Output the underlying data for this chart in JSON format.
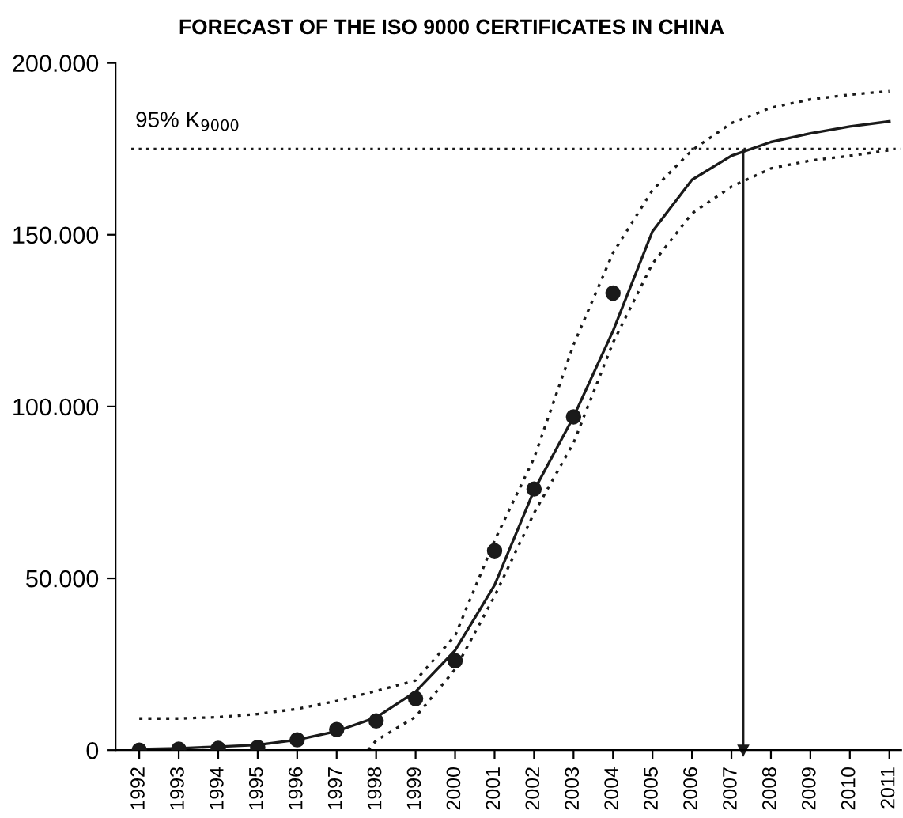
{
  "chart_data": {
    "type": "line",
    "title": "FORECAST OF THE ISO 9000 CERTIFICATES IN CHINA",
    "x": [
      1992,
      1993,
      1994,
      1995,
      1996,
      1997,
      1998,
      1999,
      2000,
      2001,
      2002,
      2003,
      2004,
      2005,
      2006,
      2007,
      2008,
      2009,
      2010,
      2011
    ],
    "series": [
      {
        "type": "scatter",
        "color": "#1a1a1a",
        "marker": "circle",
        "x": [
          1992,
          1993,
          1994,
          1995,
          1996,
          1997,
          1998,
          1999,
          2000,
          2001,
          2002,
          2003,
          2004
        ],
        "values": [
          0,
          300,
          500,
          800,
          3000,
          6000,
          8500,
          15000,
          26000,
          58000,
          76000,
          97000,
          133000
        ]
      },
      {
        "color": "#1a1a1a",
        "line_style": "solid",
        "values": [
          300,
          500,
          1000,
          1500,
          3000,
          5500,
          9500,
          17000,
          29000,
          48000,
          75600,
          97000,
          122000,
          151000,
          166000,
          173000,
          177000,
          179500,
          181500,
          183000
        ]
      },
      {
        "color": "#1a1a1a",
        "line_style": "dotted",
        "values": [
          9200,
          9200,
          9600,
          10500,
          12000,
          14300,
          17200,
          20300,
          33300,
          61000,
          85000,
          118000,
          144700,
          163000,
          174600,
          182500,
          187000,
          189400,
          190800,
          191800
        ]
      },
      {
        "color": "#1a1a1a",
        "line_style": "dotted",
        "x": [
          1997.8,
          1998,
          1999,
          2000,
          2001,
          2002,
          2003,
          2004,
          2005,
          2006,
          2007,
          2008,
          2009,
          2010,
          2011
        ],
        "values": [
          0,
          2800,
          9700,
          23500,
          44800,
          69000,
          89400,
          118600,
          141600,
          156200,
          164000,
          169300,
          171600,
          173000,
          174600
        ]
      }
    ],
    "xlim": [
      1991.4,
      2011.3
    ],
    "xticks": [
      1992,
      1993,
      1994,
      1995,
      1996,
      1997,
      1998,
      1999,
      2000,
      2001,
      2002,
      2003,
      2004,
      2005,
      2006,
      2007,
      2008,
      2009,
      2010,
      2011
    ],
    "ylim": [
      0,
      200000
    ],
    "yticks": [
      0,
      {
        "value": 50000,
        "label": "50.000"
      },
      {
        "value": 100000,
        "label": "100.000"
      },
      {
        "value": 150000,
        "label": "150.000"
      },
      {
        "value": 200000,
        "label": "200.000"
      }
    ],
    "ref_lines": [
      {
        "axis": "y",
        "value": 175000,
        "label": "95% K$_{9000}$",
        "color": "#1a1a1a",
        "line_style": "dotted"
      },
      {
        "axis": "x",
        "value": 2007.3,
        "color": "#1a1a1a",
        "line_style": "solid"
      }
    ],
    "grid": false,
    "legend": false
  }
}
